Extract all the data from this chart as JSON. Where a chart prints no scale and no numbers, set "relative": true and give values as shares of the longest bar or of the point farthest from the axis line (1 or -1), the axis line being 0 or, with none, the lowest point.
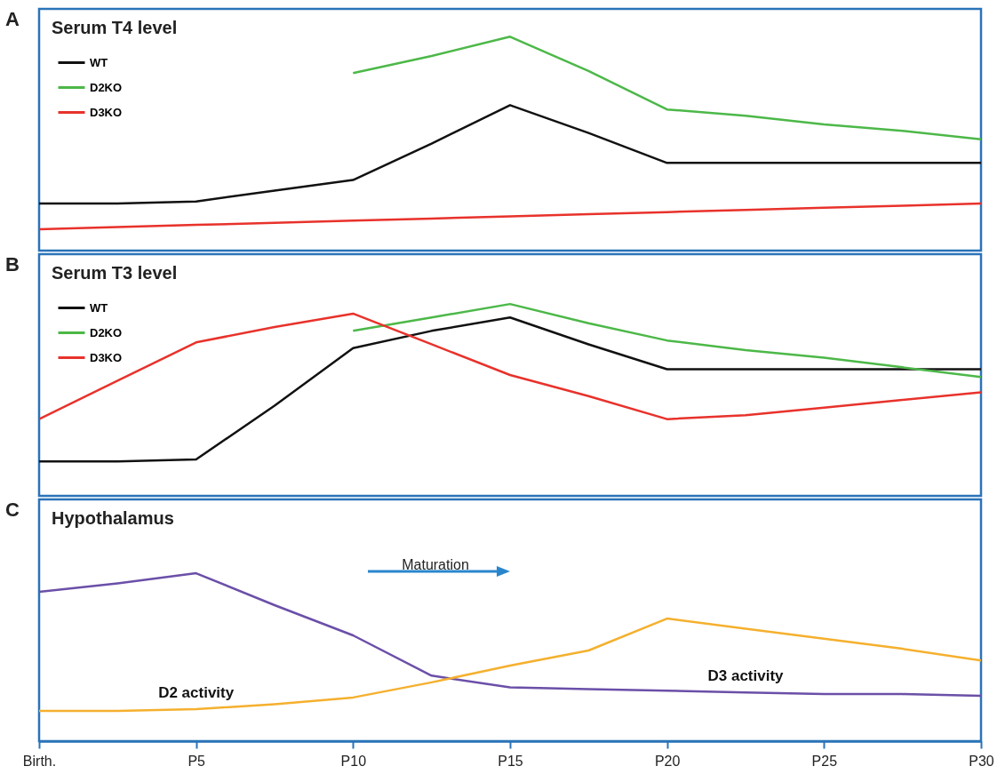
{
  "chart_data": [
    {
      "type": "line",
      "title": "Serum T4 level",
      "annotations": [
        "A"
      ],
      "relative": true,
      "tick_labels": false,
      "grid": false,
      "legend": "top left",
      "categories": [
        null,
        null,
        null,
        null,
        null,
        null,
        null,
        null,
        null,
        null,
        null,
        null,
        null
      ],
      "series": [
        {
          "name": "WT",
          "color": "#111111",
          "values": [
            0.22,
            0.22,
            0.23,
            0.28,
            0.33,
            0.5,
            0.68,
            0.55,
            0.41,
            0.41,
            0.41,
            0.41,
            0.41
          ]
        },
        {
          "name": "D2KO",
          "color": "#4cb848",
          "values": [
            null,
            null,
            null,
            null,
            0.83,
            0.91,
            1,
            0.84,
            0.66,
            0.63,
            0.59,
            0.56,
            0.52
          ]
        },
        {
          "name": "D3KO",
          "color": "#e8322b",
          "values": [
            0.1,
            0.11,
            0.12,
            0.13,
            0.14,
            0.15,
            0.16,
            0.17,
            0.18,
            0.19,
            0.2,
            0.21,
            0.22
          ]
        }
      ]
    },
    {
      "type": "line",
      "title": "Serum T3 level",
      "annotations": [
        "B"
      ],
      "relative": true,
      "tick_labels": false,
      "grid": false,
      "legend": "top left",
      "categories": [
        null,
        null,
        null,
        null,
        null,
        null,
        null,
        null,
        null,
        null,
        null,
        null,
        null
      ],
      "series": [
        {
          "name": "WT",
          "color": "#111111",
          "values": [
            0.18,
            0.18,
            0.19,
            0.47,
            0.77,
            0.86,
            0.93,
            0.79,
            0.66,
            0.66,
            0.66,
            0.66,
            0.66
          ]
        },
        {
          "name": "D2KO",
          "color": "#4cb848",
          "values": [
            null,
            null,
            null,
            null,
            0.86,
            0.93,
            1,
            0.9,
            0.81,
            0.76,
            0.72,
            0.67,
            0.62
          ]
        },
        {
          "name": "D3KO",
          "color": "#e8322b",
          "values": [
            0.4,
            0.6,
            0.8,
            0.88,
            0.95,
            0.79,
            0.63,
            0.52,
            0.4,
            0.42,
            0.46,
            0.5,
            0.54
          ]
        }
      ]
    },
    {
      "type": "line",
      "title": "Hypothalamus",
      "annotations": [
        "C",
        "Maturation"
      ],
      "relative": true,
      "tick_labels": "x",
      "grid": false,
      "legend": false,
      "categories": [
        "Birth.",
        null,
        "P5",
        null,
        "P10",
        null,
        "P15",
        null,
        "P20",
        null,
        "P25",
        null,
        "P30"
      ],
      "series": [
        {
          "name": "D3 activity",
          "color": "#6b4fa8",
          "values": [
            0.89,
            0.94,
            1,
            0.81,
            0.63,
            0.39,
            0.32,
            0.31,
            0.3,
            0.29,
            0.28,
            0.28,
            0.27
          ]
        },
        {
          "name": "D2 activity",
          "color": "#f5b02e",
          "values": [
            0.18,
            0.18,
            0.19,
            0.22,
            0.26,
            0.35,
            0.45,
            0.54,
            0.73,
            0.67,
            0.61,
            0.55,
            0.48
          ]
        }
      ]
    }
  ]
}
